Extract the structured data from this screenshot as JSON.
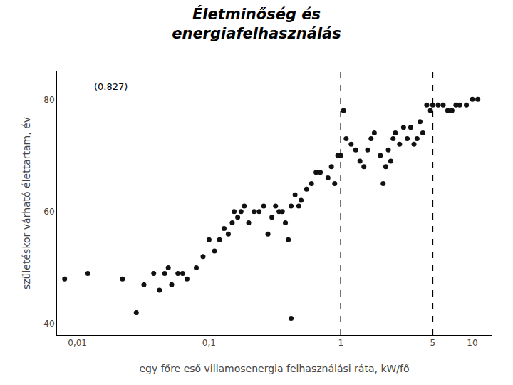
{
  "chart_data": {
    "type": "scatter",
    "title": "Életminőség és\nenergiafelhasználás",
    "xlabel": "egy főre eső villamosenergia felhasználási ráta, kW/fő",
    "ylabel": "születéskor várható élettartam, év",
    "log": "x",
    "grid": false,
    "color": "#111111",
    "xlim": [
      0.007,
      14
    ],
    "ylim": [
      38,
      85
    ],
    "xticks": [
      {
        "value": 0.01,
        "label": "0,01"
      },
      {
        "value": 0.1,
        "label": "0,1"
      },
      1,
      5,
      10
    ],
    "yticks": [
      40,
      60,
      80
    ],
    "vlines": [
      1.0,
      5.0
    ],
    "annotations": [
      {
        "text": "(0.827)",
        "x": 0.013,
        "y": 83.5
      }
    ],
    "x": [
      0.008,
      0.012,
      0.022,
      0.028,
      0.032,
      0.038,
      0.042,
      0.046,
      0.049,
      0.052,
      0.058,
      0.063,
      0.068,
      0.08,
      0.09,
      0.1,
      0.11,
      0.12,
      0.13,
      0.14,
      0.15,
      0.155,
      0.165,
      0.175,
      0.185,
      0.2,
      0.22,
      0.24,
      0.26,
      0.28,
      0.3,
      0.32,
      0.34,
      0.36,
      0.38,
      0.4,
      0.42,
      0.45,
      0.48,
      0.5,
      0.55,
      0.6,
      0.65,
      0.7,
      0.42,
      0.8,
      0.85,
      0.9,
      0.95,
      1.0,
      1.05,
      1.1,
      1.2,
      1.3,
      1.4,
      1.5,
      1.6,
      1.7,
      1.8,
      2.0,
      2.1,
      2.2,
      2.3,
      2.4,
      2.5,
      2.6,
      2.8,
      3.0,
      3.2,
      3.4,
      3.6,
      3.8,
      4.0,
      4.2,
      4.5,
      4.8,
      5.0,
      5.5,
      6.0,
      6.5,
      7.0,
      7.5,
      8.0,
      9.0,
      10.0,
      11.0
    ],
    "values": [
      48,
      49,
      48,
      42,
      47,
      49,
      46,
      49,
      50,
      47,
      49,
      49,
      48,
      50,
      52,
      55,
      53,
      55,
      57,
      56,
      58,
      60,
      59,
      60,
      61,
      58,
      60,
      60,
      61,
      56,
      59,
      61,
      60,
      60,
      58,
      55,
      61,
      63,
      61,
      62,
      64,
      65,
      67,
      67,
      41,
      66,
      68,
      65,
      70,
      70,
      78,
      73,
      72,
      71,
      69,
      68,
      71,
      73,
      74,
      70,
      65,
      68,
      71,
      69,
      73,
      74,
      72,
      75,
      73,
      75,
      72,
      73,
      76,
      74,
      79,
      78,
      79,
      79,
      79,
      78,
      78,
      79,
      79,
      79,
      80,
      80
    ]
  }
}
